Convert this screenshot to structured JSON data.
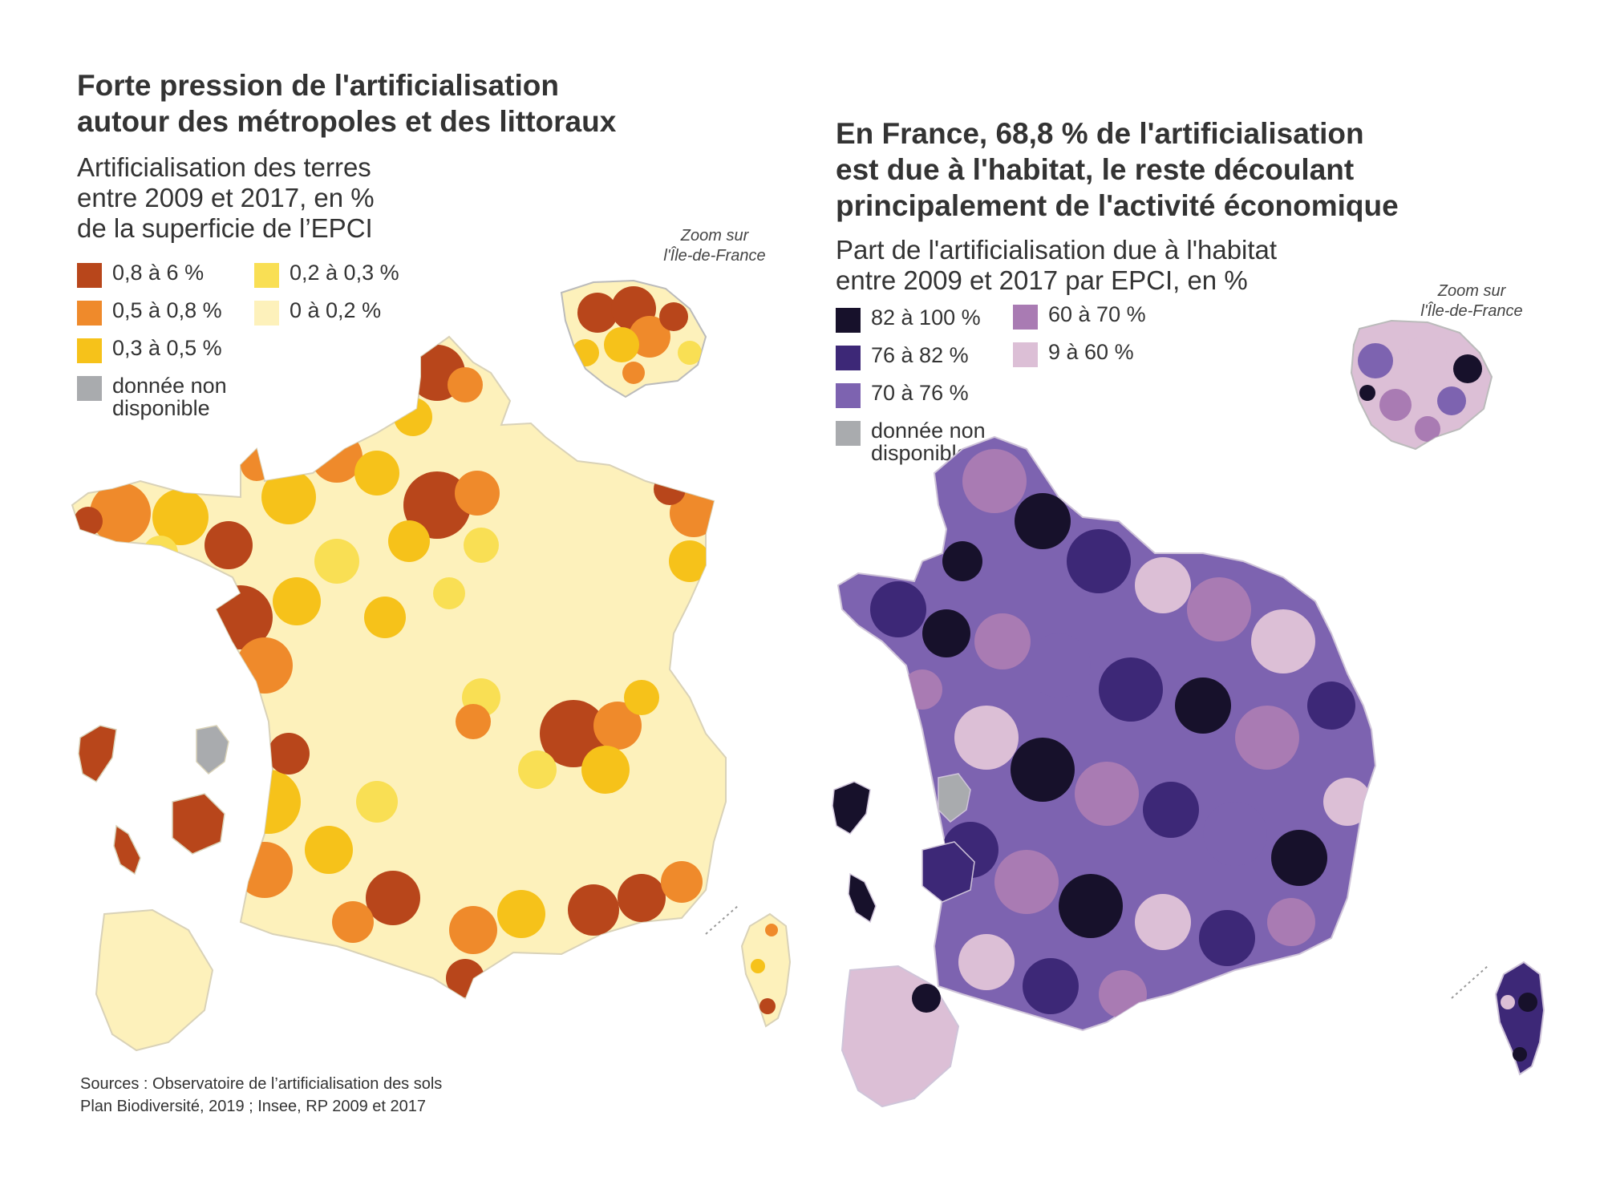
{
  "maps": [
    {
      "id": "left",
      "title": "Forte pression de l'artificialisation\nautour des métropoles et des littoraux",
      "subtitle": "Artificialisation des terres\nentre 2009 et 2017, en %\nde la superficie de l’EPCI",
      "zoom_label": "Zoom sur\nl'Île-de-France",
      "legend": [
        {
          "label": "0,8 à 6 %",
          "color": "#b8461b"
        },
        {
          "label": "0,5 à 0,8 %",
          "color": "#ef8a2b"
        },
        {
          "label": "0,3 à 0,5 %",
          "color": "#f6c21a"
        },
        {
          "label": "donnée non\ndisponible",
          "color": "#a9abae"
        },
        {
          "label": "0,2 à 0,3 %",
          "color": "#f9df54"
        },
        {
          "label": "0 à 0,2 %",
          "color": "#fdf1bb"
        }
      ]
    },
    {
      "id": "right",
      "title": "En France, 68,8 % de l'artificialisation\nest due à l'habitat, le reste découlant\nprincipalement de l'activité économique",
      "subtitle": "Part de l'artificialisation due à l'habitat\nentre 2009 et 2017 par EPCI, en %",
      "zoom_label": "Zoom sur\nl'Île-de-France",
      "legend": [
        {
          "label": "82 à 100 %",
          "color": "#17112b"
        },
        {
          "label": "76 à 82 %",
          "color": "#3d2877"
        },
        {
          "label": "70 à 76 %",
          "color": "#7d63b0"
        },
        {
          "label": "donnée non\ndisponible",
          "color": "#a9abae"
        },
        {
          "label": "60 à 70 %",
          "color": "#a97bb3"
        },
        {
          "label": "9 à 60 %",
          "color": "#dcbfd6"
        }
      ]
    }
  ],
  "sources": "Sources : Observatoire de l’artificialisation des sols\nPlan Biodiversité, 2019 ; Insee, RP 2009 et 2017"
}
